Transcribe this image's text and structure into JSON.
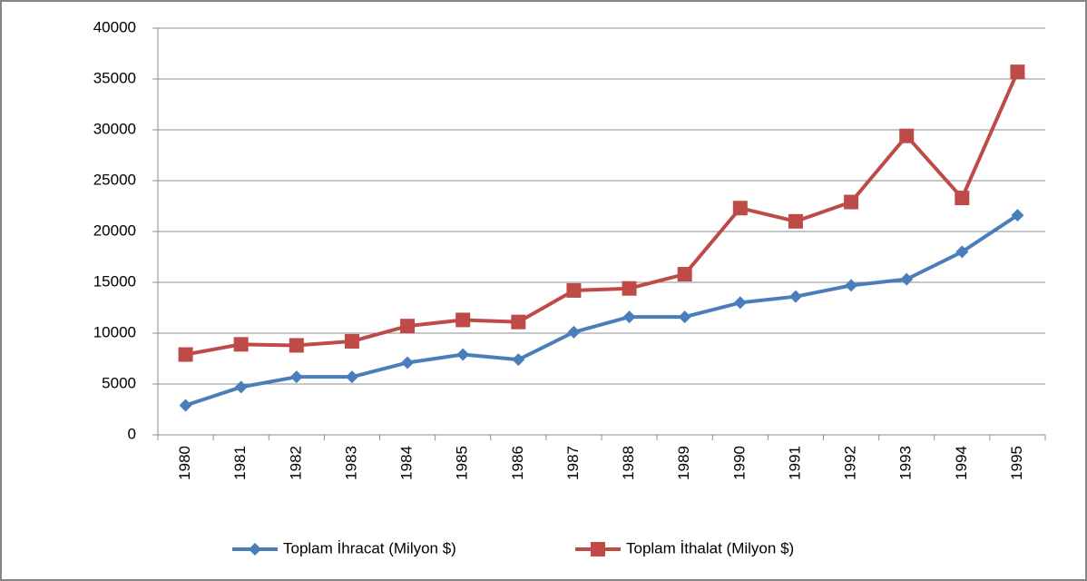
{
  "chart_data": {
    "type": "line",
    "categories": [
      "1980",
      "1981",
      "1982",
      "1983",
      "1984",
      "1985",
      "1986",
      "1987",
      "1988",
      "1989",
      "1990",
      "1991",
      "1992",
      "1993",
      "1994",
      "1995"
    ],
    "series": [
      {
        "name": "Toplam İhracat (Milyon $)",
        "color": "#4a7ebb",
        "marker": "diamond",
        "values": [
          2900,
          4700,
          5700,
          5700,
          7100,
          7900,
          7400,
          10100,
          11600,
          11600,
          13000,
          13600,
          14700,
          15300,
          18000,
          21600
        ]
      },
      {
        "name": "Toplam İthalat (Milyon $)",
        "color": "#be4b48",
        "marker": "square",
        "values": [
          7900,
          8900,
          8800,
          9200,
          10700,
          11300,
          11100,
          14200,
          14400,
          15800,
          22300,
          21000,
          22900,
          29400,
          23300,
          35700
        ]
      }
    ],
    "ylim": [
      0,
      40000
    ],
    "yticks": [
      0,
      5000,
      10000,
      15000,
      20000,
      25000,
      30000,
      35000,
      40000
    ],
    "grid": true,
    "legend": "bottom"
  }
}
